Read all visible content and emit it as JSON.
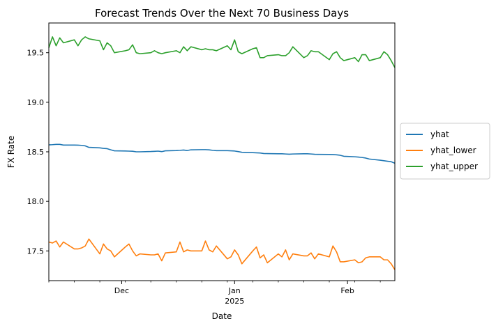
{
  "chart_data": {
    "type": "line",
    "title": "Forecast Trends Over the Next 70 Business Days",
    "xlabel": "Date",
    "ylabel": "FX Rate",
    "x_start": "2024-11-11",
    "x_end": "2025-02-14",
    "ylim": [
      17.2,
      19.8
    ],
    "yticks": [
      "17.5",
      "18.0",
      "18.5",
      "19.0",
      "19.5"
    ],
    "xticks": [
      {
        "date": "2024-12-01",
        "label": "Dec",
        "sublabel": ""
      },
      {
        "date": "2025-01-01",
        "label": "Jan",
        "sublabel": "2025"
      },
      {
        "date": "2025-02-01",
        "label": "Feb",
        "sublabel": ""
      }
    ],
    "legend_position": "right",
    "grid": false,
    "dates": [
      "2024-11-11",
      "2024-11-12",
      "2024-11-13",
      "2024-11-14",
      "2024-11-15",
      "2024-11-18",
      "2024-11-19",
      "2024-11-20",
      "2024-11-21",
      "2024-11-22",
      "2024-11-25",
      "2024-11-26",
      "2024-11-27",
      "2024-11-28",
      "2024-11-29",
      "2024-12-02",
      "2024-12-03",
      "2024-12-04",
      "2024-12-05",
      "2024-12-06",
      "2024-12-09",
      "2024-12-10",
      "2024-12-11",
      "2024-12-12",
      "2024-12-13",
      "2024-12-16",
      "2024-12-17",
      "2024-12-18",
      "2024-12-19",
      "2024-12-20",
      "2024-12-23",
      "2024-12-24",
      "2024-12-25",
      "2024-12-26",
      "2024-12-27",
      "2024-12-30",
      "2024-12-31",
      "2025-01-01",
      "2025-01-02",
      "2025-01-03",
      "2025-01-06",
      "2025-01-07",
      "2025-01-08",
      "2025-01-09",
      "2025-01-10",
      "2025-01-13",
      "2025-01-14",
      "2025-01-15",
      "2025-01-16",
      "2025-01-17",
      "2025-01-20",
      "2025-01-21",
      "2025-01-22",
      "2025-01-23",
      "2025-01-24",
      "2025-01-27",
      "2025-01-28",
      "2025-01-29",
      "2025-01-30",
      "2025-01-31",
      "2025-02-03",
      "2025-02-04",
      "2025-02-05",
      "2025-02-06",
      "2025-02-07",
      "2025-02-10",
      "2025-02-11",
      "2025-02-12",
      "2025-02-13",
      "2025-02-14"
    ],
    "series": [
      {
        "name": "yhat",
        "color": "#1f77b4",
        "values": [
          18.57,
          18.572,
          18.575,
          18.575,
          18.568,
          18.568,
          18.567,
          18.565,
          18.56,
          18.545,
          18.54,
          18.535,
          18.532,
          18.52,
          18.51,
          18.508,
          18.507,
          18.506,
          18.5,
          18.5,
          18.503,
          18.505,
          18.507,
          18.502,
          18.51,
          18.513,
          18.515,
          18.518,
          18.513,
          18.52,
          18.522,
          18.522,
          18.52,
          18.515,
          18.512,
          18.512,
          18.51,
          18.508,
          18.502,
          18.495,
          18.492,
          18.49,
          18.488,
          18.483,
          18.482,
          18.48,
          18.48,
          18.478,
          18.476,
          18.478,
          18.48,
          18.48,
          18.478,
          18.475,
          18.474,
          18.473,
          18.472,
          18.47,
          18.465,
          18.455,
          18.45,
          18.447,
          18.443,
          18.437,
          18.427,
          18.415,
          18.41,
          18.405,
          18.4,
          18.385
        ]
      },
      {
        "name": "yhat_lower",
        "color": "#ff7f0e",
        "values": [
          17.59,
          17.58,
          17.6,
          17.54,
          17.59,
          17.52,
          17.52,
          17.53,
          17.55,
          17.62,
          17.47,
          17.57,
          17.52,
          17.5,
          17.44,
          17.54,
          17.57,
          17.5,
          17.45,
          17.47,
          17.46,
          17.46,
          17.47,
          17.4,
          17.48,
          17.49,
          17.59,
          17.49,
          17.51,
          17.5,
          17.5,
          17.6,
          17.51,
          17.49,
          17.55,
          17.42,
          17.44,
          17.51,
          17.46,
          17.37,
          17.5,
          17.54,
          17.43,
          17.46,
          17.38,
          17.47,
          17.44,
          17.51,
          17.41,
          17.47,
          17.45,
          17.45,
          17.48,
          17.42,
          17.47,
          17.44,
          17.55,
          17.49,
          17.39,
          17.39,
          17.41,
          17.38,
          17.39,
          17.43,
          17.44,
          17.44,
          17.41,
          17.41,
          17.37,
          17.31
        ]
      },
      {
        "name": "yhat_upper",
        "color": "#2ca02c",
        "values": [
          19.55,
          19.66,
          19.57,
          19.65,
          19.6,
          19.63,
          19.57,
          19.63,
          19.66,
          19.64,
          19.62,
          19.53,
          19.6,
          19.57,
          19.5,
          19.52,
          19.53,
          19.58,
          19.5,
          19.49,
          19.5,
          19.52,
          19.5,
          19.49,
          19.5,
          19.52,
          19.5,
          19.56,
          19.52,
          19.56,
          19.53,
          19.54,
          19.53,
          19.53,
          19.52,
          19.57,
          19.53,
          19.63,
          19.51,
          19.49,
          19.54,
          19.55,
          19.45,
          19.45,
          19.47,
          19.48,
          19.47,
          19.47,
          19.5,
          19.56,
          19.45,
          19.47,
          19.52,
          19.51,
          19.51,
          19.43,
          19.49,
          19.51,
          19.45,
          19.42,
          19.45,
          19.41,
          19.48,
          19.48,
          19.42,
          19.45,
          19.51,
          19.48,
          19.42,
          19.35
        ]
      }
    ]
  }
}
